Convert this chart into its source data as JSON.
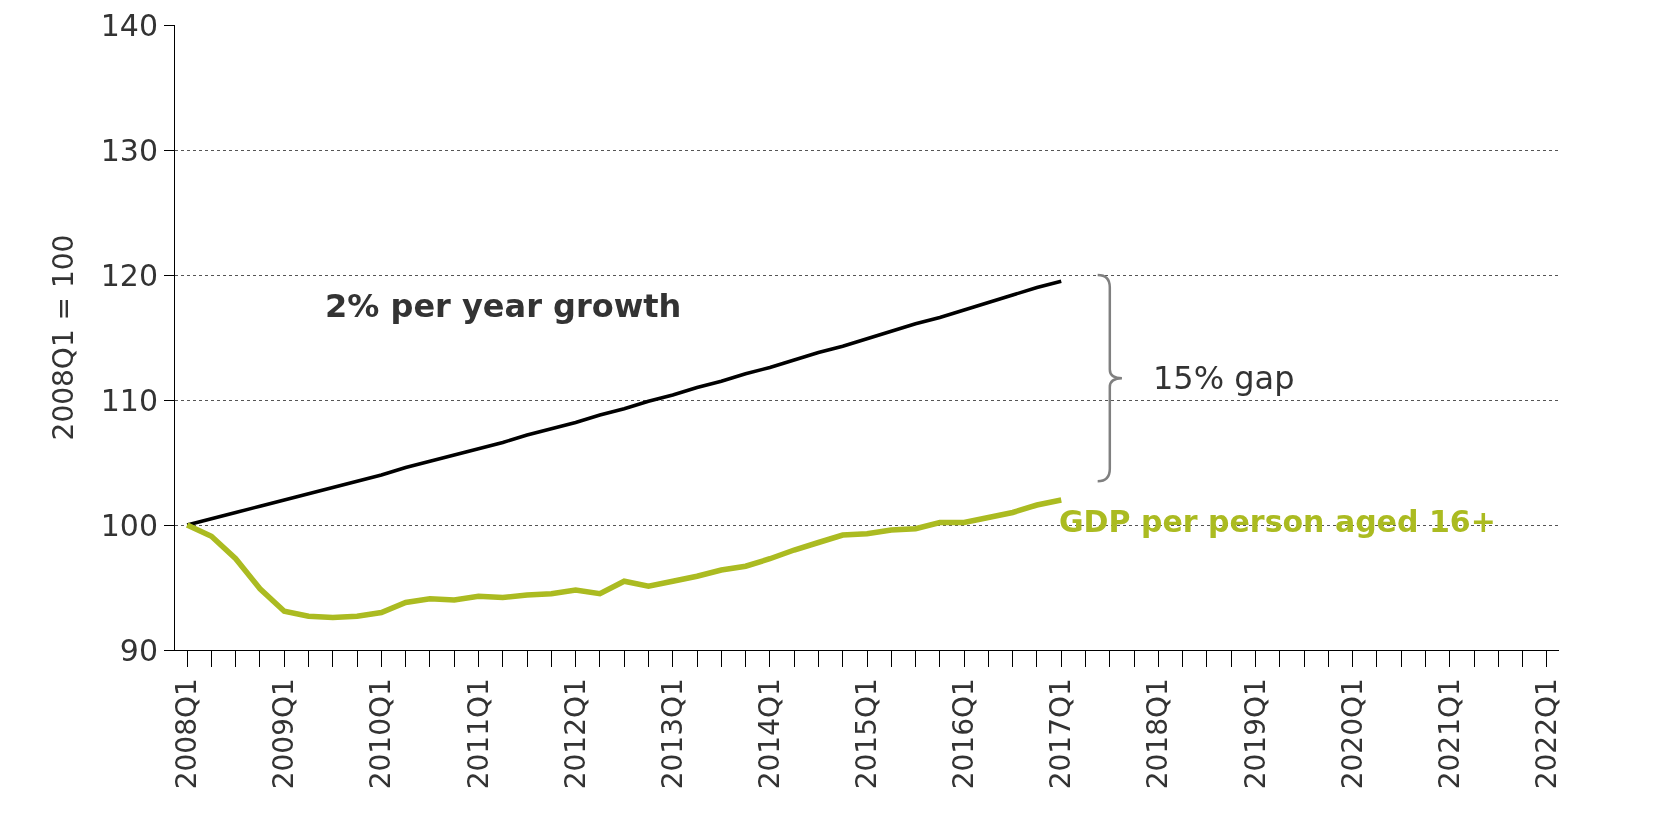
{
  "chart_data": {
    "type": "line",
    "ylabel": "2008Q1 = 100",
    "categories": [
      "2008Q1",
      null,
      null,
      null,
      "2009Q1",
      null,
      null,
      null,
      "2010Q1",
      null,
      null,
      null,
      "2011Q1",
      null,
      null,
      null,
      "2012Q1",
      null,
      null,
      null,
      "2013Q1",
      null,
      null,
      null,
      "2014Q1",
      null,
      null,
      null,
      "2015Q1",
      null,
      null,
      null,
      "2016Q1",
      null,
      null,
      null,
      "2017Q1",
      null,
      null,
      null,
      "2018Q1",
      null,
      null,
      null,
      "2019Q1",
      null,
      null,
      null,
      "2020Q1",
      null,
      null,
      null,
      "2021Q1",
      null,
      null,
      null,
      "2022Q1"
    ],
    "series": [
      {
        "name": "2% per year growth",
        "color": "#000000",
        "values": [
          100,
          100.5,
          101.0,
          101.5,
          102.0,
          102.5,
          103.0,
          103.5,
          104.0,
          104.6,
          105.1,
          105.6,
          106.1,
          106.6,
          107.2,
          107.7,
          108.2,
          108.8,
          109.3,
          109.9,
          110.4,
          111.0,
          111.5,
          112.1,
          112.6,
          113.2,
          113.8,
          114.3,
          114.9,
          115.5,
          116.1,
          116.6,
          117.2,
          117.8,
          118.4,
          119.0,
          119.5,
          null,
          null,
          null,
          null,
          null,
          null,
          null,
          null,
          null,
          null,
          null,
          null,
          null,
          null,
          null,
          null,
          null,
          null,
          null,
          null
        ]
      },
      {
        "name": "GDP per person aged 16+",
        "color": "#abbb21",
        "values": [
          100,
          99.1,
          97.3,
          94.9,
          93.1,
          92.7,
          92.6,
          92.7,
          93.0,
          93.8,
          94.1,
          94.0,
          94.3,
          94.2,
          94.4,
          94.5,
          94.8,
          94.5,
          95.5,
          95.1,
          95.5,
          95.9,
          96.4,
          96.7,
          97.3,
          98.0,
          98.6,
          99.2,
          99.3,
          99.6,
          99.7,
          100.2,
          100.2,
          100.6,
          101.0,
          101.6,
          102.0,
          null,
          null,
          null,
          null,
          null,
          null,
          null,
          null,
          null,
          null,
          null,
          null,
          null,
          null,
          null,
          null,
          null,
          null,
          null,
          null
        ]
      }
    ],
    "annotations": [
      "15% gap"
    ],
    "ylim": [
      90,
      140
    ],
    "yticks": [
      90,
      100,
      110,
      120,
      130,
      140
    ],
    "grid": "y",
    "legend": false,
    "marker": "none",
    "line_style": "solid"
  }
}
